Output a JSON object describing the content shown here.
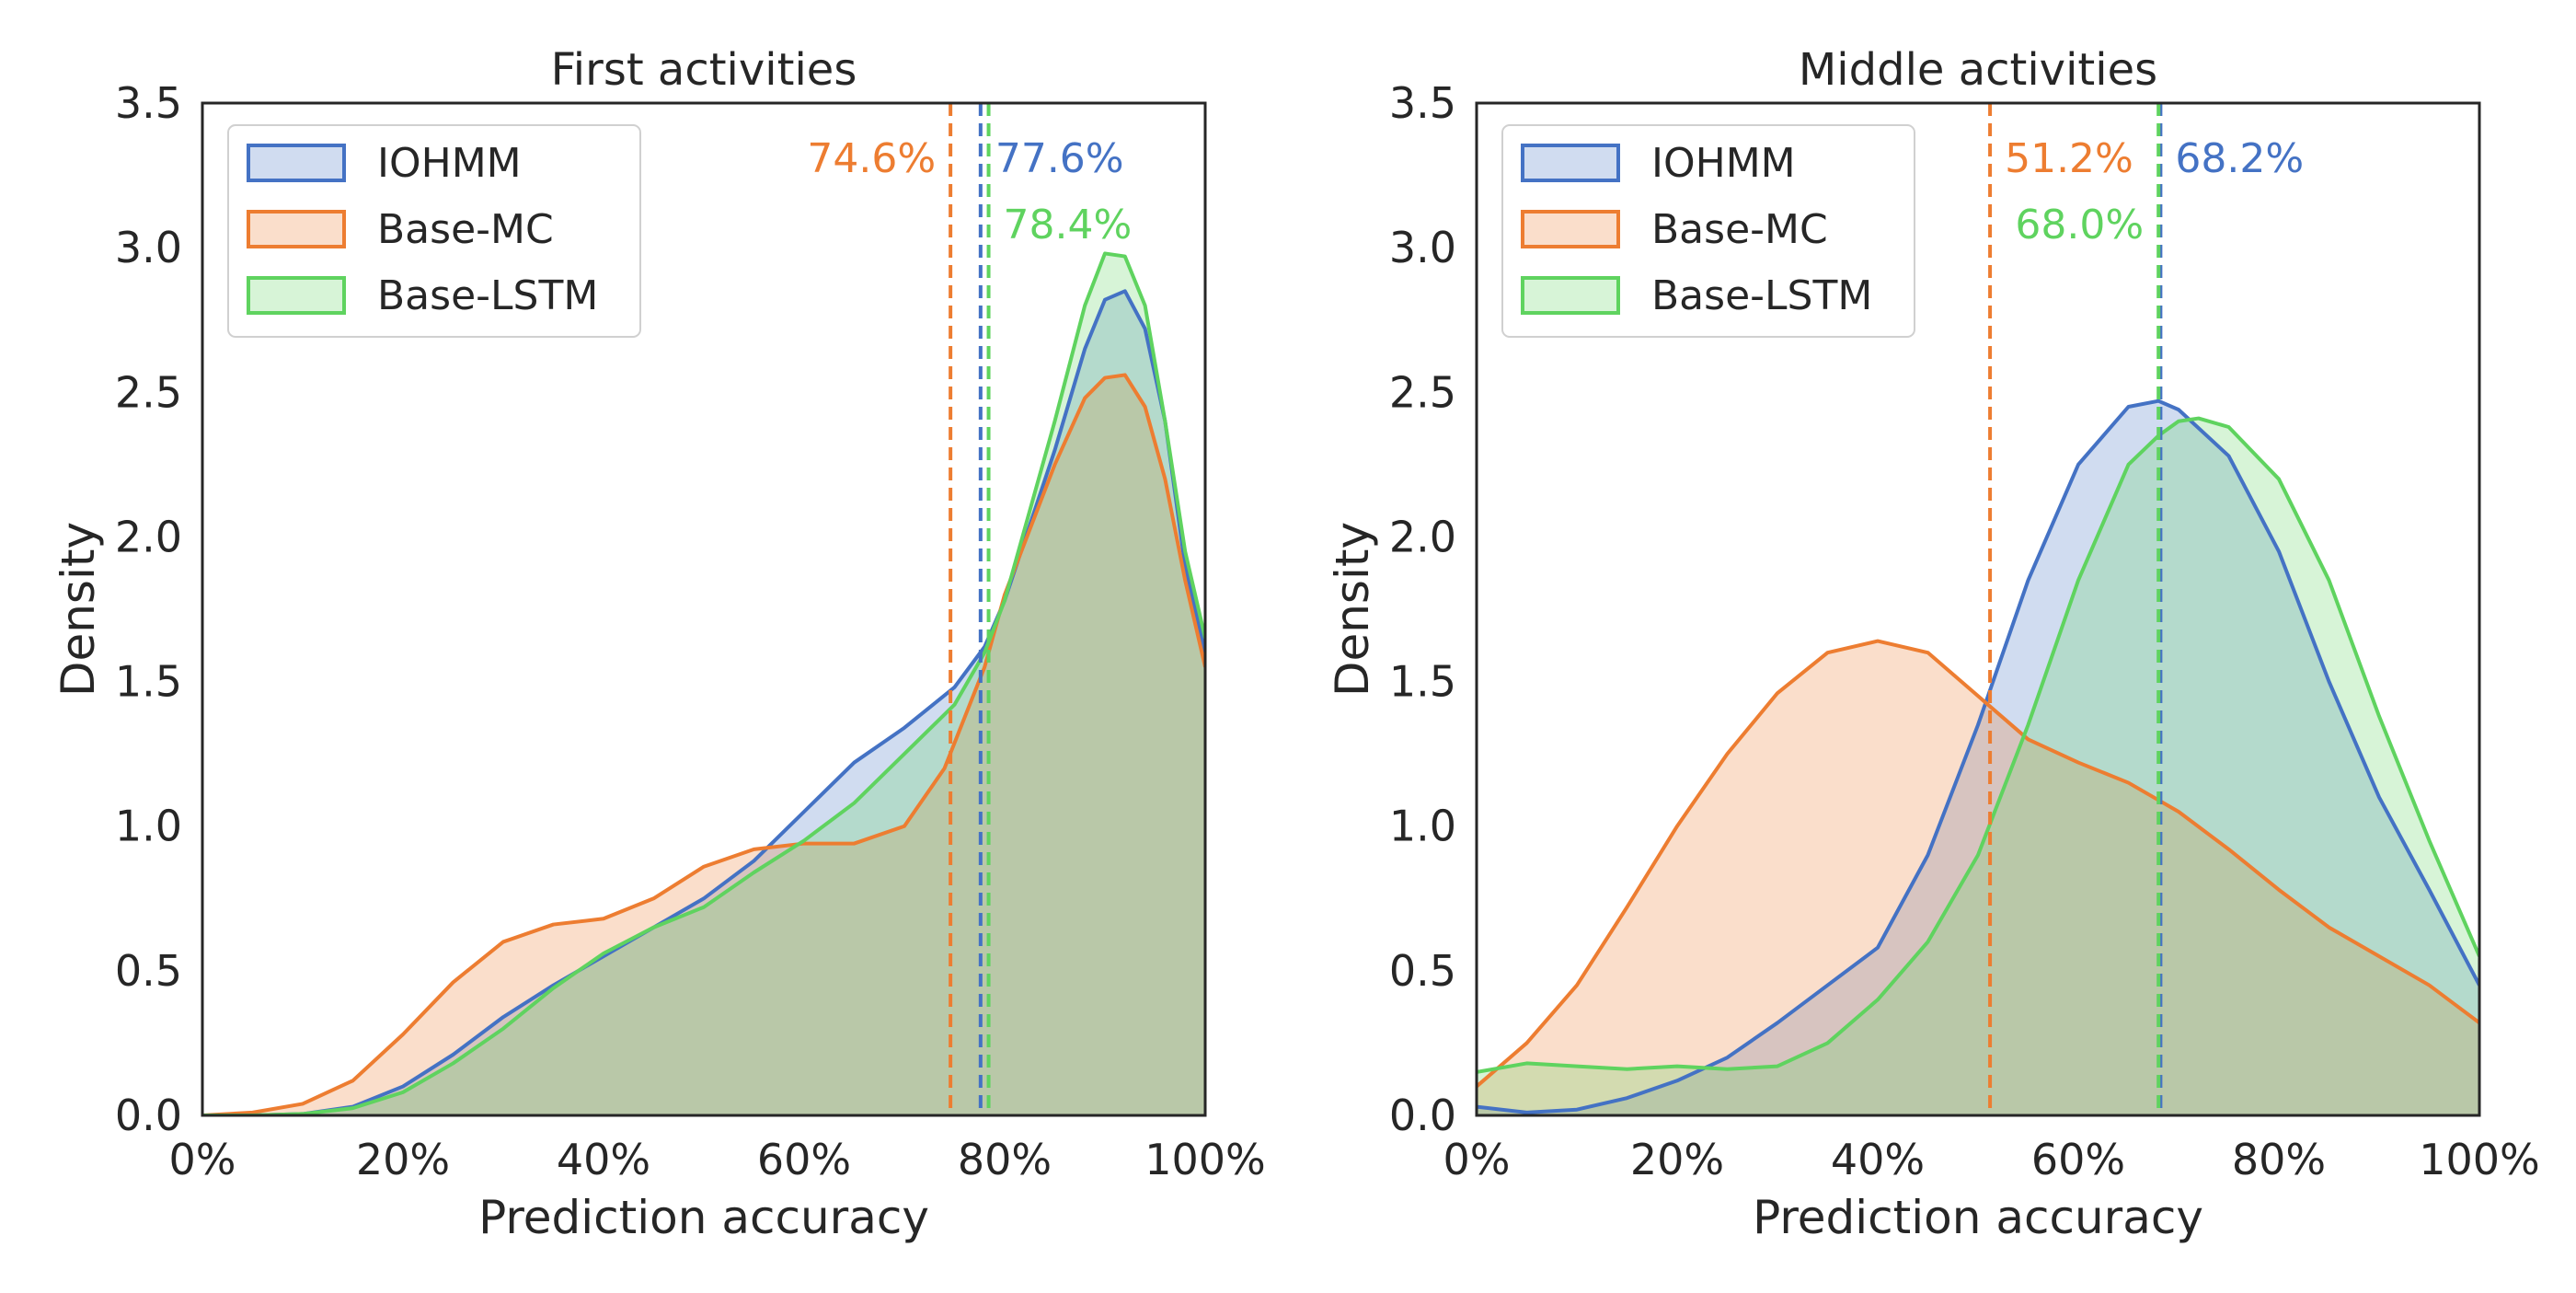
{
  "chart_data": [
    {
      "type": "area",
      "title": "First activities",
      "xlabel": "Prediction accuracy",
      "ylabel": "Density",
      "xlim": [
        0,
        100
      ],
      "ylim": [
        0,
        3.5
      ],
      "xticks": [
        "0%",
        "20%",
        "40%",
        "60%",
        "80%",
        "100%"
      ],
      "yticks": [
        "0.0",
        "0.5",
        "1.0",
        "1.5",
        "2.0",
        "2.5",
        "3.0",
        "3.5"
      ],
      "legend_position": "top-left",
      "series": [
        {
          "name": "IOHMM",
          "color": "#4472c4",
          "mean": 77.6,
          "mean_label": "77.6%",
          "x": [
            0,
            5,
            10,
            15,
            20,
            25,
            30,
            35,
            40,
            45,
            50,
            55,
            60,
            65,
            70,
            75,
            78,
            80,
            85,
            88,
            90,
            92,
            94,
            96,
            98,
            100
          ],
          "y": [
            0,
            0,
            0.005,
            0.03,
            0.1,
            0.21,
            0.34,
            0.45,
            0.55,
            0.65,
            0.75,
            0.88,
            1.05,
            1.22,
            1.34,
            1.48,
            1.62,
            1.78,
            2.3,
            2.65,
            2.82,
            2.85,
            2.72,
            2.4,
            1.9,
            1.6
          ]
        },
        {
          "name": "Base-MC",
          "color": "#ed7d31",
          "mean": 74.6,
          "mean_label": "74.6%",
          "x": [
            0,
            5,
            10,
            15,
            20,
            25,
            30,
            35,
            40,
            45,
            50,
            55,
            60,
            65,
            70,
            74,
            78,
            80,
            85,
            88,
            90,
            92,
            94,
            96,
            98,
            100
          ],
          "y": [
            0,
            0.01,
            0.04,
            0.12,
            0.28,
            0.46,
            0.6,
            0.66,
            0.68,
            0.75,
            0.86,
            0.92,
            0.94,
            0.94,
            1.0,
            1.2,
            1.55,
            1.8,
            2.25,
            2.48,
            2.55,
            2.56,
            2.45,
            2.2,
            1.85,
            1.55
          ]
        },
        {
          "name": "Base-LSTM",
          "color": "#5fd35f",
          "mean": 78.4,
          "mean_label": "78.4%",
          "x": [
            0,
            5,
            10,
            15,
            20,
            25,
            30,
            35,
            40,
            45,
            50,
            55,
            60,
            65,
            70,
            75,
            78,
            80,
            85,
            88,
            90,
            92,
            94,
            96,
            98,
            100
          ],
          "y": [
            0,
            0,
            0.005,
            0.025,
            0.08,
            0.18,
            0.3,
            0.44,
            0.56,
            0.65,
            0.72,
            0.84,
            0.95,
            1.08,
            1.25,
            1.42,
            1.6,
            1.78,
            2.4,
            2.8,
            2.98,
            2.97,
            2.8,
            2.4,
            1.95,
            1.65
          ]
        }
      ]
    },
    {
      "type": "area",
      "title": "Middle activities",
      "xlabel": "Prediction accuracy",
      "ylabel": "Density",
      "xlim": [
        0,
        100
      ],
      "ylim": [
        0,
        3.5
      ],
      "xticks": [
        "0%",
        "20%",
        "40%",
        "60%",
        "80%",
        "100%"
      ],
      "yticks": [
        "0.0",
        "0.5",
        "1.0",
        "1.5",
        "2.0",
        "2.5",
        "3.0",
        "3.5"
      ],
      "legend_position": "top-left",
      "series": [
        {
          "name": "IOHMM",
          "color": "#4472c4",
          "mean": 68.2,
          "mean_label": "68.2%",
          "x": [
            0,
            5,
            10,
            15,
            20,
            25,
            30,
            35,
            40,
            45,
            50,
            55,
            60,
            65,
            68,
            70,
            75,
            80,
            85,
            90,
            95,
            100
          ],
          "y": [
            0.03,
            0.01,
            0.02,
            0.06,
            0.12,
            0.2,
            0.32,
            0.45,
            0.58,
            0.9,
            1.35,
            1.85,
            2.25,
            2.45,
            2.47,
            2.44,
            2.28,
            1.95,
            1.5,
            1.1,
            0.78,
            0.45
          ]
        },
        {
          "name": "Base-MC",
          "color": "#ed7d31",
          "mean": 51.2,
          "mean_label": "51.2%",
          "x": [
            0,
            5,
            10,
            15,
            20,
            25,
            30,
            35,
            40,
            45,
            50,
            55,
            60,
            65,
            70,
            75,
            80,
            85,
            90,
            95,
            100
          ],
          "y": [
            0.1,
            0.25,
            0.45,
            0.72,
            1.0,
            1.25,
            1.46,
            1.6,
            1.64,
            1.6,
            1.45,
            1.3,
            1.22,
            1.15,
            1.05,
            0.92,
            0.78,
            0.65,
            0.55,
            0.45,
            0.32
          ]
        },
        {
          "name": "Base-LSTM",
          "color": "#5fd35f",
          "mean": 68.0,
          "mean_label": "68.0%",
          "x": [
            0,
            5,
            10,
            15,
            20,
            25,
            30,
            35,
            40,
            45,
            50,
            55,
            60,
            65,
            68,
            70,
            72,
            75,
            80,
            85,
            90,
            95,
            100
          ],
          "y": [
            0.15,
            0.18,
            0.17,
            0.16,
            0.17,
            0.16,
            0.17,
            0.25,
            0.4,
            0.6,
            0.9,
            1.35,
            1.85,
            2.25,
            2.35,
            2.4,
            2.41,
            2.38,
            2.2,
            1.85,
            1.38,
            0.95,
            0.55
          ]
        }
      ]
    }
  ]
}
